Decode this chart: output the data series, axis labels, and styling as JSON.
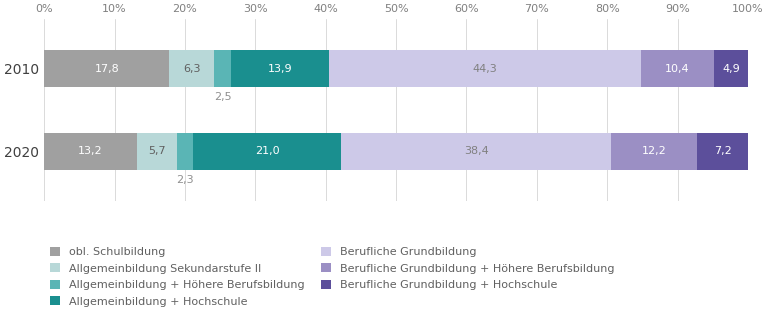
{
  "years": [
    "2010",
    "2020"
  ],
  "segments": [
    {
      "label": "obl. Schulbildung",
      "color": "#a0a0a0",
      "values": [
        17.8,
        13.2
      ],
      "txt_color": "#ffffff"
    },
    {
      "label": "Allgemeinbildung Sekundarstufe II",
      "color": "#b8d8d8",
      "values": [
        6.3,
        5.7
      ],
      "txt_color": "#606060"
    },
    {
      "label": "Allgemeinbildung + Höhere Berufsbildung",
      "color": "#5ab5b5",
      "values": [
        2.5,
        2.3
      ],
      "below_bar": true,
      "txt_color": "#606060"
    },
    {
      "label": "Allgemeinbildung + Hochschule",
      "color": "#1a8f8f",
      "values": [
        13.9,
        21.0
      ],
      "txt_color": "#ffffff"
    },
    {
      "label": "Berufliche Grundbildung",
      "color": "#cdc9e8",
      "values": [
        44.3,
        38.4
      ],
      "txt_color": "#808080"
    },
    {
      "label": "Berufliche Grundbildung + Höhere Berufsbildung",
      "color": "#9b8fc4",
      "values": [
        10.4,
        12.2
      ],
      "txt_color": "#ffffff"
    },
    {
      "label": "Berufliche Grundbildung + Hochschule",
      "color": "#5c4f9b",
      "values": [
        4.9,
        7.2
      ],
      "txt_color": "#ffffff"
    }
  ],
  "bar_order": [
    0,
    1,
    2,
    3,
    4,
    5,
    6
  ],
  "xlim": [
    0,
    100
  ],
  "xticks": [
    0,
    10,
    20,
    30,
    40,
    50,
    60,
    70,
    80,
    90,
    100
  ],
  "background_color": "#ffffff",
  "bar_height": 0.45,
  "label_fontsize": 8,
  "legend_fontsize": 8,
  "ytick_fontsize": 10,
  "xtick_fontsize": 8,
  "grid_color": "#cccccc",
  "tick_label_color": "#808080",
  "yticklabel_color": "#404040"
}
